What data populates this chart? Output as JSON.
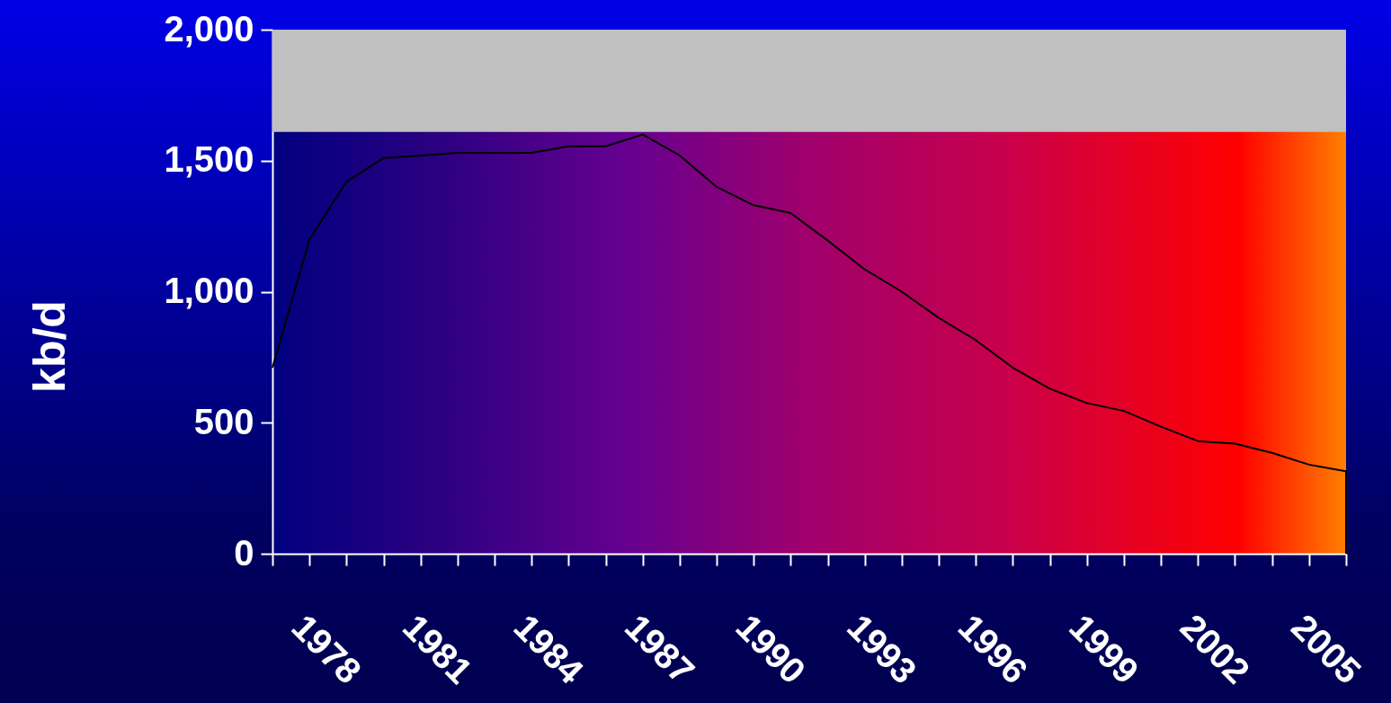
{
  "chart_data": {
    "type": "line",
    "ylabel": "kb/d",
    "x": [
      1977,
      1978,
      1979,
      1980,
      1981,
      1982,
      1983,
      1984,
      1985,
      1986,
      1987,
      1988,
      1989,
      1990,
      1991,
      1992,
      1993,
      1994,
      1995,
      1996,
      1997,
      1998,
      1999,
      2000,
      2001,
      2002,
      2003,
      2004,
      2005,
      2006,
      2006
    ],
    "series": [
      {
        "color": "#000000",
        "values": [
          710,
          1200,
          1420,
          1510,
          1520,
          1530,
          1530,
          1530,
          1555,
          1555,
          1600,
          1520,
          1400,
          1330,
          1300,
          1195,
          1085,
          1000,
          900,
          815,
          710,
          630,
          575,
          545,
          485,
          430,
          420,
          385,
          340,
          315,
          0
        ]
      }
    ],
    "xlim": [
      1977,
      2006
    ],
    "xticks": [
      {
        "value": 1977,
        "label": null
      },
      1978,
      {
        "value": 1979,
        "label": null
      },
      {
        "value": 1980,
        "label": null
      },
      1981,
      {
        "value": 1982,
        "label": null
      },
      {
        "value": 1983,
        "label": null
      },
      1984,
      {
        "value": 1985,
        "label": null
      },
      {
        "value": 1986,
        "label": null
      },
      1987,
      {
        "value": 1988,
        "label": null
      },
      {
        "value": 1989,
        "label": null
      },
      1990,
      {
        "value": 1991,
        "label": null
      },
      {
        "value": 1992,
        "label": null
      },
      1993,
      {
        "value": 1994,
        "label": null
      },
      {
        "value": 1995,
        "label": null
      },
      1996,
      {
        "value": 1997,
        "label": null
      },
      {
        "value": 1998,
        "label": null
      },
      1999,
      {
        "value": 2000,
        "label": null
      },
      {
        "value": 2001,
        "label": null
      },
      2002,
      {
        "value": 2003,
        "label": null
      },
      {
        "value": 2004,
        "label": null
      },
      2005,
      {
        "value": 2006,
        "label": null
      }
    ],
    "ylim": [
      0,
      2000
    ],
    "yticks": [
      0,
      500,
      {
        "value": 1000,
        "label": "1,000"
      },
      {
        "value": 1500,
        "label": "1,500"
      },
      {
        "value": 2000,
        "label": "2,000"
      }
    ],
    "bands": [
      {
        "axis": "y",
        "from": 1610,
        "to": 2000,
        "color": "#c0c0c0"
      }
    ],
    "grid": false,
    "marker": "none",
    "line_style": "solid"
  }
}
